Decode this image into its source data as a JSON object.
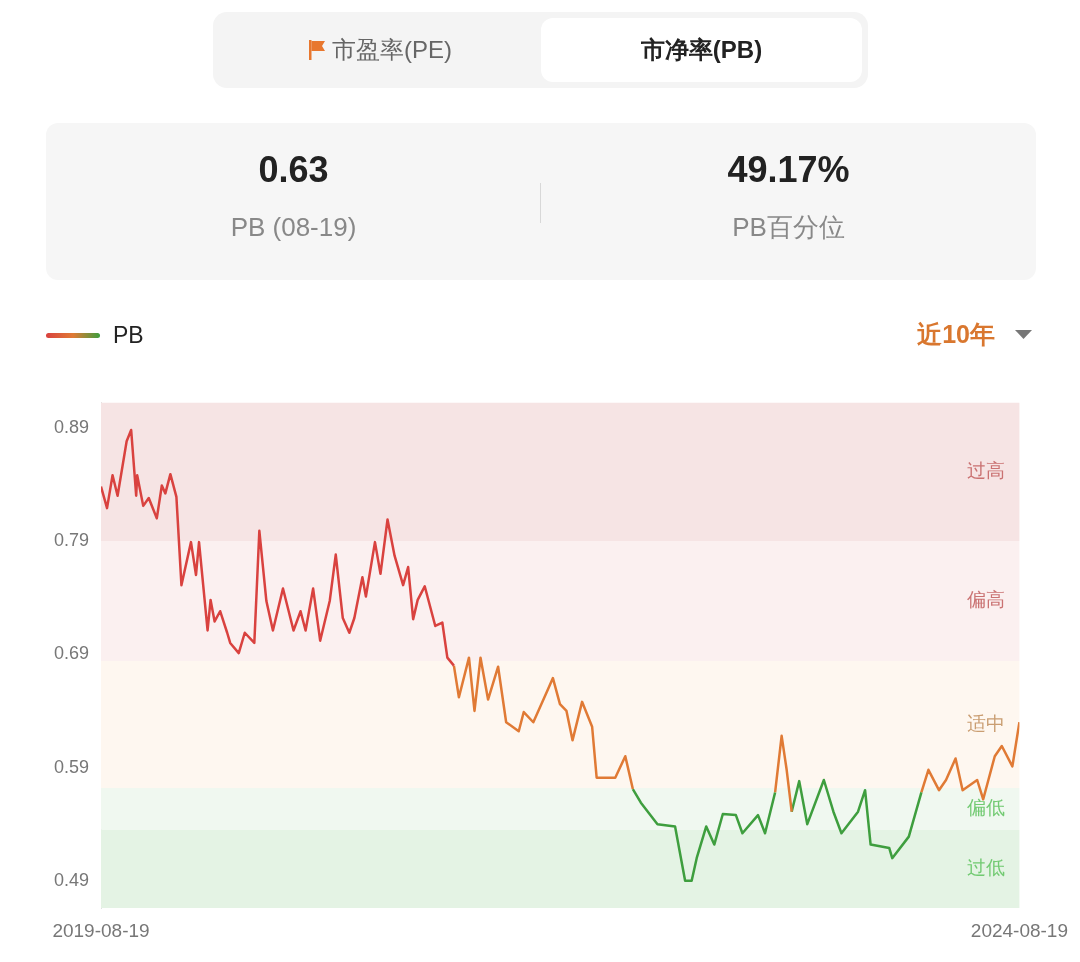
{
  "chart_data": {
    "type": "line",
    "annotations": [
      "市盈率(PE)",
      "市净率(PB)",
      "0.63",
      "PB (08-19)",
      "49.17%",
      "PB百分位",
      "近10年"
    ],
    "legend": "top left",
    "grid": false,
    "marker": "none",
    "xlim": [
      "2019-08-19",
      "2024-08-19"
    ],
    "xticks": [
      "2019-08-19",
      "2024-08-19"
    ],
    "ylim": [
      0.466,
      0.912
    ],
    "yticks": [
      0.89,
      0.79,
      0.69,
      0.59,
      0.49
    ],
    "bands": [
      {
        "axis": "y",
        "from": 0.79,
        "to": 0.912,
        "label": "过高",
        "color": "#f6e4e4"
      },
      {
        "axis": "y",
        "from": 0.684,
        "to": 0.79,
        "label": "偏高",
        "color": "#fbf0f0"
      },
      {
        "axis": "y",
        "from": 0.572,
        "to": 0.684,
        "label": "适中",
        "color": "#fef7f0"
      },
      {
        "axis": "y",
        "from": 0.535,
        "to": 0.572,
        "label": "偏低",
        "color": "#f0f8f0"
      },
      {
        "axis": "y",
        "from": 0.466,
        "to": 0.535,
        "label": "过低",
        "color": "#e4f3e4"
      }
    ],
    "series": [
      {
        "name": "PB",
        "color": "#d9423f",
        "x": [
          "2019-08-19",
          "2019-08-31",
          "2019-09-11",
          "2019-09-21",
          "2019-10-09",
          "2019-10-18",
          "2019-10-28",
          "2019-10-30",
          "2019-11-11",
          "2019-11-22",
          "2019-12-08",
          "2019-12-18",
          "2019-12-25",
          "2020-01-04",
          "2020-01-16",
          "2020-01-26",
          "2020-02-14",
          "2020-02-24",
          "2020-03-01",
          "2020-03-18",
          "2020-03-24",
          "2020-04-01",
          "2020-04-12",
          "2020-04-26",
          "2020-05-02",
          "2020-05-19",
          "2020-05-31",
          "2020-06-19",
          "2020-06-29",
          "2020-07-13",
          "2020-07-26",
          "2020-08-15",
          "2020-09-05",
          "2020-09-19",
          "2020-09-29",
          "2020-10-14",
          "2020-10-28",
          "2020-11-16",
          "2020-11-28",
          "2020-12-12",
          "2020-12-25",
          "2021-01-04",
          "2021-01-20",
          "2021-01-27",
          "2021-02-14",
          "2021-02-25",
          "2021-03-11",
          "2021-03-25",
          "2021-04-11",
          "2021-04-21",
          "2021-05-01",
          "2021-05-10",
          "2021-05-24",
          "2021-06-14",
          "2021-06-28",
          "2021-07-08",
          "2021-07-21"
        ],
        "values": [
          0.838,
          0.819,
          0.848,
          0.83,
          0.878,
          0.888,
          0.83,
          0.848,
          0.821,
          0.828,
          0.81,
          0.839,
          0.832,
          0.849,
          0.829,
          0.751,
          0.789,
          0.76,
          0.789,
          0.711,
          0.738,
          0.719,
          0.728,
          0.709,
          0.7,
          0.691,
          0.709,
          0.7,
          0.799,
          0.737,
          0.711,
          0.748,
          0.711,
          0.728,
          0.711,
          0.748,
          0.702,
          0.737,
          0.778,
          0.722,
          0.709,
          0.722,
          0.758,
          0.741,
          0.789,
          0.761,
          0.809,
          0.777,
          0.751,
          0.767,
          0.721,
          0.738,
          0.75,
          0.715,
          0.718,
          0.687,
          0.68
        ]
      },
      {
        "color": "#e07a35",
        "x": [
          "2021-07-21",
          "2021-07-31",
          "2021-08-20",
          "2021-08-31",
          "2021-09-12",
          "2021-09-27",
          "2021-10-17",
          "2021-11-02",
          "2021-11-27",
          "2021-12-07",
          "2021-12-26",
          "2022-01-22",
          "2022-02-03",
          "2022-02-17",
          "2022-03-02",
          "2022-03-14",
          "2022-04-02",
          "2022-04-22",
          "2022-05-01",
          "2022-06-07",
          "2022-06-27",
          "2022-07-12"
        ],
        "values": [
          0.68,
          0.652,
          0.687,
          0.64,
          0.687,
          0.65,
          0.679,
          0.63,
          0.622,
          0.639,
          0.63,
          0.657,
          0.669,
          0.646,
          0.64,
          0.614,
          0.648,
          0.626,
          0.581,
          0.581,
          0.6,
          0.571
        ]
      },
      {
        "color": "#3e9e3e",
        "x": [
          "2022-07-12",
          "2022-07-28",
          "2022-08-30",
          "2022-10-04",
          "2022-10-24",
          "2022-11-06",
          "2022-11-16",
          "2022-12-05",
          "2022-12-21",
          "2023-01-07",
          "2023-02-02",
          "2023-02-15",
          "2023-03-18",
          "2023-04-01",
          "2023-04-21"
        ],
        "values": [
          0.571,
          0.559,
          0.54,
          0.538,
          0.49,
          0.49,
          0.51,
          0.538,
          0.522,
          0.549,
          0.548,
          0.532,
          0.548,
          0.532,
          0.568
        ]
      },
      {
        "color": "#e07a35",
        "x": [
          "2023-04-21",
          "2023-05-04",
          "2023-05-14",
          "2023-05-24"
        ],
        "values": [
          0.568,
          0.618,
          0.588,
          0.551
        ]
      },
      {
        "color": "#3e9e3e",
        "x": [
          "2023-05-24",
          "2023-06-08",
          "2023-06-24",
          "2023-07-27",
          "2023-08-15",
          "2023-08-31",
          "2023-10-03",
          "2023-10-17",
          "2023-10-28",
          "2023-12-04",
          "2023-12-10",
          "2024-01-12",
          "2024-02-06"
        ],
        "values": [
          0.551,
          0.578,
          0.54,
          0.579,
          0.551,
          0.532,
          0.551,
          0.57,
          0.522,
          0.519,
          0.51,
          0.529,
          0.568
        ]
      },
      {
        "color": "#e07a35",
        "x": [
          "2024-02-06",
          "2024-02-20",
          "2024-03-12",
          "2024-03-26",
          "2024-04-14",
          "2024-04-28",
          "2024-05-27",
          "2024-06-08",
          "2024-07-01",
          "2024-07-15",
          "2024-08-05",
          "2024-08-19"
        ],
        "values": [
          0.568,
          0.588,
          0.57,
          0.579,
          0.598,
          0.57,
          0.579,
          0.562,
          0.6,
          0.609,
          0.591,
          0.63
        ]
      }
    ]
  }
}
